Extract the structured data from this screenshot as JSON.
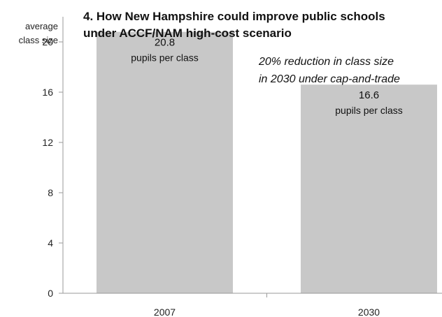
{
  "chart_data": {
    "type": "bar",
    "title_lines": [
      "4. How New Hampshire could improve public schools",
      "under ACCF/NAM high-cost scenario"
    ],
    "ylabel_lines": [
      "average",
      "class size"
    ],
    "categories": [
      "2007",
      "2030"
    ],
    "values": [
      20.8,
      16.6
    ],
    "value_labels": [
      "20.8",
      "16.6"
    ],
    "unit_label": "pupils per class",
    "yticks": [
      0,
      4,
      8,
      12,
      16,
      20
    ],
    "ylim": [
      0,
      22
    ],
    "annotation_lines": [
      "20% reduction in class size",
      "in 2030 under cap-and-trade"
    ],
    "grid": false,
    "legend": "none",
    "colors": {
      "bar": "#c8c8c8",
      "axis": "#9a9a9a",
      "text": "#111111"
    }
  }
}
